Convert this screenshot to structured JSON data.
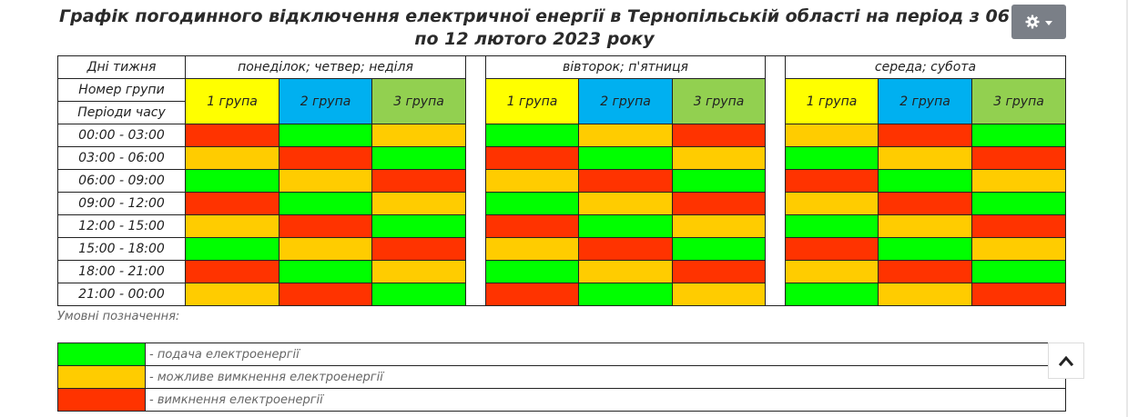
{
  "header": {
    "title_main": "Графік погодинного відключення електричної енергії  в Тернопільській області на період ",
    "title_dates": "з 06 по 12 лютого 2023 року",
    "gear_icon": "gear-icon"
  },
  "schedule": {
    "row_label_days": "Дні тижня",
    "row_label_group": "Номер групи",
    "row_label_periods": "Періоди часу",
    "day_groups": [
      {
        "label": "понеділок; четвер; неділя",
        "groups": [
          "1 група",
          "2 група",
          "3 група"
        ]
      },
      {
        "label": "вівторок; п'ятниця",
        "groups": [
          "1 група",
          "2 група",
          "3 група"
        ]
      },
      {
        "label": "середа; субота",
        "groups": [
          "1 група",
          "2 група",
          "3 група"
        ]
      }
    ],
    "group_colors": [
      "#ffff00",
      "#00b0f0",
      "#92d050"
    ],
    "periods": [
      "00:00 - 03:00",
      "03:00 - 06:00",
      "06:00 - 09:00",
      "09:00 - 12:00",
      "12:00 - 15:00",
      "15:00 - 18:00",
      "18:00 - 21:00",
      "21:00 - 00:00"
    ],
    "status_grid": [
      [
        "red",
        "green",
        "orange",
        "green",
        "orange",
        "red",
        "orange",
        "red",
        "green"
      ],
      [
        "orange",
        "red",
        "green",
        "red",
        "green",
        "orange",
        "green",
        "orange",
        "red"
      ],
      [
        "green",
        "orange",
        "red",
        "orange",
        "red",
        "green",
        "red",
        "green",
        "orange"
      ],
      [
        "red",
        "green",
        "orange",
        "green",
        "orange",
        "red",
        "orange",
        "red",
        "green"
      ],
      [
        "orange",
        "red",
        "green",
        "red",
        "green",
        "orange",
        "green",
        "orange",
        "red"
      ],
      [
        "green",
        "orange",
        "red",
        "orange",
        "red",
        "green",
        "red",
        "green",
        "orange"
      ],
      [
        "red",
        "green",
        "orange",
        "green",
        "orange",
        "red",
        "orange",
        "red",
        "green"
      ],
      [
        "orange",
        "red",
        "green",
        "red",
        "green",
        "orange",
        "green",
        "orange",
        "red"
      ]
    ]
  },
  "legend": {
    "caption": "Умовні позначення:",
    "items": [
      {
        "status": "green",
        "color": "#00ff00",
        "text": "- подача електроенергії"
      },
      {
        "status": "orange",
        "color": "#ffcc00",
        "text": "- можливе вимкнення електроенергії"
      },
      {
        "status": "red",
        "color": "#ff3300",
        "text": "- вимкнення електроенергії"
      }
    ]
  },
  "status_colors": {
    "green": "#00ff00",
    "orange": "#ffcc00",
    "red": "#ff3300"
  },
  "scroll_top_icon": "chevron-up-icon"
}
